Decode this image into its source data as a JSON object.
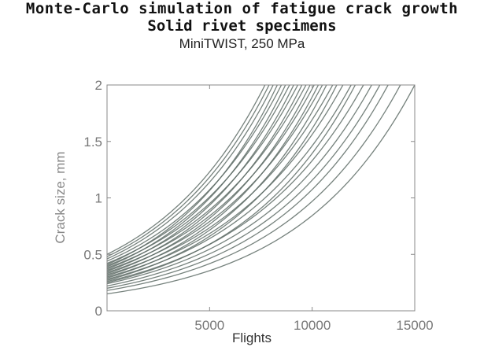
{
  "title_line1": "Monte-Carlo simulation of fatigue crack growth",
  "title_line2": "Solid rivet specimens",
  "subtitle": "MiniTWIST, 250 MPa",
  "chart_data": {
    "type": "line",
    "title": "Monte-Carlo simulation of fatigue crack growth",
    "subtitle": "MiniTWIST, 250 MPa",
    "xlabel": "Flights",
    "ylabel": "Crack size, mm",
    "xlim": [
      0,
      15000
    ],
    "ylim": [
      0,
      2
    ],
    "xticks": [
      5000,
      10000,
      15000
    ],
    "yticks": [
      0,
      0.5,
      1,
      1.5,
      2
    ],
    "xtick_labels": [
      "5000",
      "10000",
      "15000"
    ],
    "ytick_labels": [
      "0",
      "0.5",
      "1",
      "1.5",
      "2"
    ],
    "grid": false,
    "series_model": "exponential growth y = y0 * exp(k * x) from x = 0 until y = 2",
    "series": [
      {
        "y0": 0.15,
        "x_at_2mm": 15000
      },
      {
        "y0": 0.18,
        "x_at_2mm": 14300
      },
      {
        "y0": 0.2,
        "x_at_2mm": 13700
      },
      {
        "y0": 0.22,
        "x_at_2mm": 13300
      },
      {
        "y0": 0.24,
        "x_at_2mm": 12900
      },
      {
        "y0": 0.26,
        "x_at_2mm": 12500
      },
      {
        "y0": 0.25,
        "x_at_2mm": 12100
      },
      {
        "y0": 0.28,
        "x_at_2mm": 11900
      },
      {
        "y0": 0.3,
        "x_at_2mm": 11500
      },
      {
        "y0": 0.27,
        "x_at_2mm": 11200
      },
      {
        "y0": 0.32,
        "x_at_2mm": 11000
      },
      {
        "y0": 0.29,
        "x_at_2mm": 10700
      },
      {
        "y0": 0.34,
        "x_at_2mm": 10500
      },
      {
        "y0": 0.31,
        "x_at_2mm": 10300
      },
      {
        "y0": 0.36,
        "x_at_2mm": 10100
      },
      {
        "y0": 0.33,
        "x_at_2mm": 9900
      },
      {
        "y0": 0.38,
        "x_at_2mm": 9700
      },
      {
        "y0": 0.35,
        "x_at_2mm": 9500
      },
      {
        "y0": 0.4,
        "x_at_2mm": 9300
      },
      {
        "y0": 0.37,
        "x_at_2mm": 9100
      },
      {
        "y0": 0.42,
        "x_at_2mm": 8900
      },
      {
        "y0": 0.39,
        "x_at_2mm": 8700
      },
      {
        "y0": 0.44,
        "x_at_2mm": 8500
      },
      {
        "y0": 0.41,
        "x_at_2mm": 8300
      },
      {
        "y0": 0.46,
        "x_at_2mm": 8100
      },
      {
        "y0": 0.48,
        "x_at_2mm": 7900
      },
      {
        "y0": 0.5,
        "x_at_2mm": 7700
      }
    ]
  },
  "colors": {
    "curve": "#5e6c66",
    "axis": "#888888",
    "tick_text": "#777777"
  }
}
